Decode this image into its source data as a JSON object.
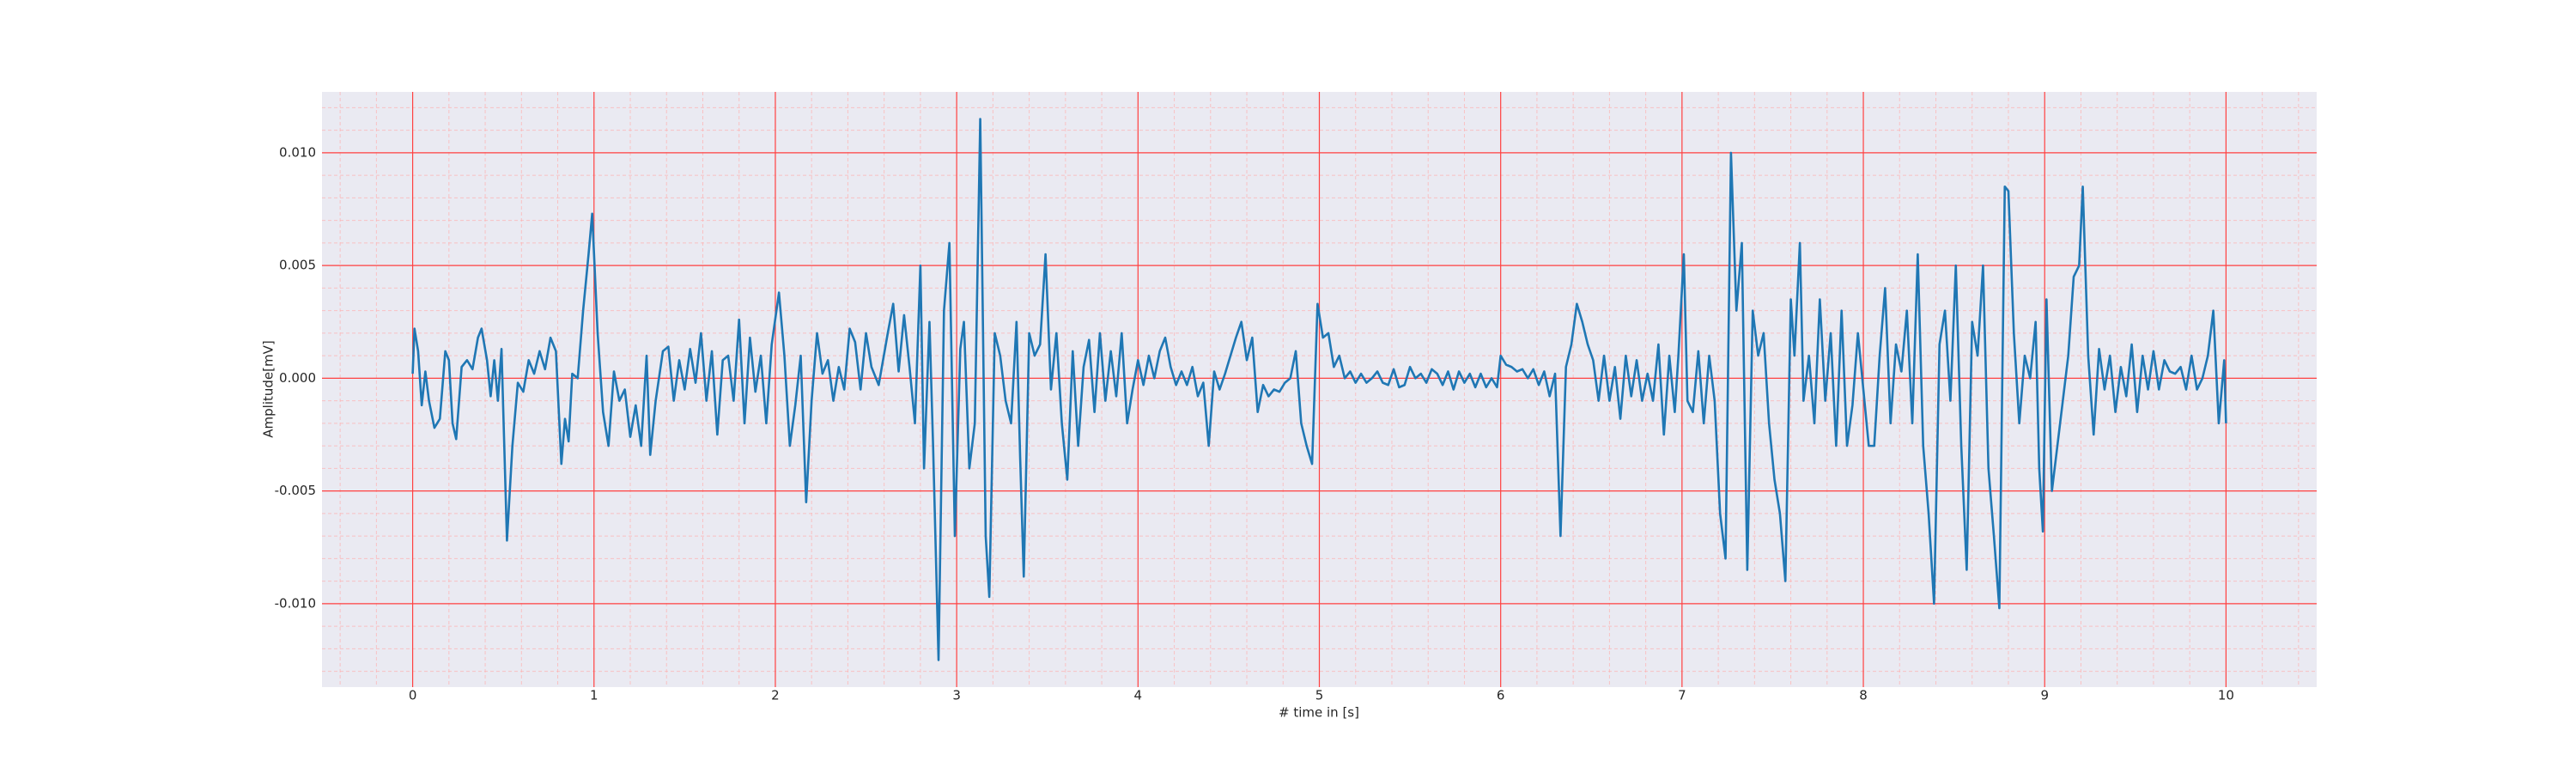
{
  "chart_data": {
    "type": "line",
    "xlabel": "# time in [s]",
    "ylabel": "Amplitude[mV]",
    "color": "#1f77b4",
    "grid": true,
    "minor_grid": true,
    "xlim": [
      -0.5,
      10.5
    ],
    "ylim": [
      -0.0137,
      0.0127
    ],
    "xticks": [
      0,
      1,
      2,
      3,
      4,
      5,
      6,
      7,
      8,
      9,
      10
    ],
    "yticks": [
      {
        "value": -0.01,
        "label": "-0.010"
      },
      {
        "value": -0.005,
        "label": "-0.005"
      },
      {
        "value": 0,
        "label": "0.000"
      },
      {
        "value": 0.005,
        "label": "0.005"
      },
      {
        "value": 0.01,
        "label": "0.010"
      }
    ],
    "xminor": [
      -0.4,
      -0.2,
      0.2,
      0.4,
      0.6,
      0.8,
      1.2,
      1.4,
      1.6,
      1.8,
      2.2,
      2.4,
      2.6,
      2.8,
      3.2,
      3.4,
      3.6,
      3.8,
      4.2,
      4.4,
      4.6,
      4.8,
      5.2,
      5.4,
      5.6,
      5.8,
      6.2,
      6.4,
      6.6,
      6.8,
      7.2,
      7.4,
      7.6,
      7.8,
      8.2,
      8.4,
      8.6,
      8.8,
      9.2,
      9.4,
      9.6,
      9.8,
      10.2,
      10.4
    ],
    "yminor": [
      -0.013,
      -0.012,
      -0.011,
      -0.009,
      -0.008,
      -0.007,
      -0.006,
      -0.004,
      -0.003,
      -0.002,
      -0.001,
      0.001,
      0.002,
      0.003,
      0.004,
      0.006,
      0.007,
      0.008,
      0.009,
      0.011,
      0.012
    ],
    "x": [
      0.0,
      0.01,
      0.03,
      0.05,
      0.07,
      0.09,
      0.12,
      0.15,
      0.18,
      0.2,
      0.22,
      0.24,
      0.27,
      0.3,
      0.33,
      0.36,
      0.38,
      0.41,
      0.43,
      0.45,
      0.47,
      0.49,
      0.52,
      0.55,
      0.58,
      0.61,
      0.64,
      0.67,
      0.7,
      0.73,
      0.76,
      0.79,
      0.82,
      0.84,
      0.86,
      0.88,
      0.91,
      0.94,
      0.97,
      0.99,
      1.02,
      1.05,
      1.08,
      1.11,
      1.14,
      1.17,
      1.2,
      1.23,
      1.26,
      1.29,
      1.31,
      1.34,
      1.38,
      1.41,
      1.44,
      1.47,
      1.5,
      1.53,
      1.56,
      1.59,
      1.62,
      1.65,
      1.68,
      1.71,
      1.74,
      1.77,
      1.8,
      1.83,
      1.86,
      1.89,
      1.92,
      1.95,
      1.98,
      2.02,
      2.05,
      2.08,
      2.11,
      2.14,
      2.17,
      2.2,
      2.23,
      2.26,
      2.29,
      2.32,
      2.35,
      2.38,
      2.41,
      2.44,
      2.47,
      2.5,
      2.53,
      2.57,
      2.62,
      2.65,
      2.68,
      2.71,
      2.74,
      2.77,
      2.8,
      2.82,
      2.85,
      2.87,
      2.9,
      2.93,
      2.96,
      2.99,
      3.02,
      3.04,
      3.07,
      3.1,
      3.13,
      3.16,
      3.18,
      3.21,
      3.24,
      3.27,
      3.3,
      3.33,
      3.35,
      3.37,
      3.4,
      3.43,
      3.46,
      3.49,
      3.52,
      3.55,
      3.58,
      3.61,
      3.64,
      3.67,
      3.7,
      3.73,
      3.76,
      3.79,
      3.82,
      3.85,
      3.88,
      3.91,
      3.94,
      3.97,
      4.0,
      4.03,
      4.06,
      4.09,
      4.12,
      4.15,
      4.18,
      4.21,
      4.24,
      4.27,
      4.3,
      4.33,
      4.36,
      4.39,
      4.42,
      4.45,
      4.48,
      4.51,
      4.54,
      4.57,
      4.6,
      4.63,
      4.66,
      4.69,
      4.72,
      4.75,
      4.78,
      4.81,
      4.84,
      4.87,
      4.9,
      4.93,
      4.96,
      4.99,
      5.02,
      5.05,
      5.08,
      5.11,
      5.14,
      5.17,
      5.2,
      5.23,
      5.26,
      5.29,
      5.32,
      5.35,
      5.38,
      5.41,
      5.44,
      5.47,
      5.5,
      5.53,
      5.56,
      5.59,
      5.62,
      5.65,
      5.68,
      5.71,
      5.74,
      5.77,
      5.8,
      5.83,
      5.86,
      5.89,
      5.92,
      5.95,
      5.98,
      6.0,
      6.03,
      6.06,
      6.09,
      6.12,
      6.15,
      6.18,
      6.21,
      6.24,
      6.27,
      6.3,
      6.33,
      6.36,
      6.39,
      6.42,
      6.45,
      6.48,
      6.51,
      6.54,
      6.57,
      6.6,
      6.63,
      6.66,
      6.69,
      6.72,
      6.75,
      6.78,
      6.81,
      6.84,
      6.87,
      6.9,
      6.93,
      6.96,
      6.98,
      7.01,
      7.03,
      7.06,
      7.09,
      7.12,
      7.15,
      7.18,
      7.21,
      7.24,
      7.27,
      7.3,
      7.33,
      7.36,
      7.39,
      7.42,
      7.45,
      7.48,
      7.51,
      7.54,
      7.57,
      7.6,
      7.62,
      7.65,
      7.67,
      7.7,
      7.73,
      7.76,
      7.79,
      7.82,
      7.85,
      7.88,
      7.91,
      7.94,
      7.97,
      8.0,
      8.03,
      8.06,
      8.09,
      8.12,
      8.15,
      8.18,
      8.21,
      8.24,
      8.27,
      8.3,
      8.33,
      8.36,
      8.39,
      8.42,
      8.45,
      8.48,
      8.51,
      8.54,
      8.57,
      8.6,
      8.63,
      8.66,
      8.69,
      8.72,
      8.75,
      8.78,
      8.8,
      8.83,
      8.86,
      8.89,
      8.92,
      8.95,
      8.97,
      8.99,
      9.01,
      9.04,
      9.07,
      9.1,
      9.13,
      9.16,
      9.19,
      9.21,
      9.24,
      9.27,
      9.3,
      9.33,
      9.36,
      9.39,
      9.42,
      9.45,
      9.48,
      9.51,
      9.54,
      9.57,
      9.6,
      9.63,
      9.66,
      9.69,
      9.72,
      9.75,
      9.78,
      9.81,
      9.84,
      9.87,
      9.9,
      9.93,
      9.96,
      9.99,
      10.0
    ],
    "values": [
      0.0002,
      0.0022,
      0.0012,
      -0.0012,
      0.0003,
      -0.001,
      -0.0022,
      -0.0018,
      0.0012,
      0.0008,
      -0.002,
      -0.0027,
      0.0005,
      0.0008,
      0.0004,
      0.0018,
      0.0022,
      0.0008,
      -0.0008,
      0.0008,
      -0.001,
      0.0013,
      -0.0072,
      -0.003,
      -0.0002,
      -0.0006,
      0.0008,
      0.0002,
      0.0012,
      0.0004,
      0.0018,
      0.0012,
      -0.0038,
      -0.0018,
      -0.0028,
      0.0002,
      0.0,
      0.003,
      0.0055,
      0.0073,
      0.002,
      -0.0015,
      -0.003,
      0.0003,
      -0.001,
      -0.0005,
      -0.0026,
      -0.0012,
      -0.003,
      0.001,
      -0.0034,
      -0.001,
      0.0012,
      0.0014,
      -0.001,
      0.0008,
      -0.0005,
      0.0013,
      -0.0002,
      0.002,
      -0.001,
      0.0012,
      -0.0025,
      0.0008,
      0.001,
      -0.001,
      0.0026,
      -0.002,
      0.0018,
      -0.0006,
      0.001,
      -0.002,
      0.0015,
      0.0038,
      0.001,
      -0.003,
      -0.0012,
      0.001,
      -0.0055,
      -0.001,
      0.002,
      0.0002,
      0.0008,
      -0.001,
      0.0005,
      -0.0005,
      0.0022,
      0.0016,
      -0.0005,
      0.002,
      0.0005,
      -0.0003,
      0.002,
      0.0033,
      0.0003,
      0.0028,
      0.0005,
      -0.002,
      0.005,
      -0.004,
      0.0025,
      -0.003,
      -0.0125,
      0.003,
      0.006,
      -0.007,
      0.0013,
      0.0025,
      -0.004,
      -0.002,
      0.0115,
      -0.007,
      -0.0097,
      0.002,
      0.001,
      -0.001,
      -0.002,
      0.0025,
      -0.0035,
      -0.0088,
      0.002,
      0.001,
      0.0015,
      0.0055,
      -0.0005,
      0.002,
      -0.002,
      -0.0045,
      0.0012,
      -0.003,
      0.0005,
      0.0017,
      -0.0015,
      0.002,
      -0.001,
      0.0012,
      -0.0008,
      0.002,
      -0.002,
      -0.0005,
      0.0008,
      -0.0003,
      0.001,
      0.0,
      0.0012,
      0.0018,
      0.0005,
      -0.0003,
      0.0003,
      -0.0003,
      0.0005,
      -0.0008,
      -0.0002,
      -0.003,
      0.0003,
      -0.0005,
      0.0002,
      0.001,
      0.0018,
      0.0025,
      0.0008,
      0.0018,
      -0.0015,
      -0.0003,
      -0.0008,
      -0.0005,
      -0.0006,
      -0.0002,
      0.0,
      0.0012,
      -0.002,
      -0.003,
      -0.0038,
      0.0033,
      0.0018,
      0.002,
      0.0005,
      0.001,
      0.0,
      0.0003,
      -0.0002,
      0.0002,
      -0.0002,
      0.0,
      0.0003,
      -0.0002,
      -0.0003,
      0.0004,
      -0.0004,
      -0.0003,
      0.0005,
      0.0,
      0.0002,
      -0.0002,
      0.0004,
      0.0002,
      -0.0003,
      0.0003,
      -0.0005,
      0.0003,
      -0.0002,
      0.0002,
      -0.0004,
      0.0002,
      -0.0004,
      0.0,
      -0.0004,
      0.001,
      0.0006,
      0.0005,
      0.0003,
      0.0004,
      0.0,
      0.0004,
      -0.0003,
      0.0003,
      -0.0008,
      0.0002,
      -0.007,
      0.0005,
      0.0015,
      0.0033,
      0.0025,
      0.0015,
      0.0008,
      -0.001,
      0.001,
      -0.001,
      0.0005,
      -0.0018,
      0.001,
      -0.0008,
      0.0008,
      -0.001,
      0.0002,
      -0.001,
      0.0015,
      -0.0025,
      0.001,
      -0.0015,
      0.001,
      0.0055,
      -0.001,
      -0.0015,
      0.0012,
      -0.002,
      0.001,
      -0.001,
      -0.006,
      -0.008,
      0.01,
      0.003,
      0.006,
      -0.0085,
      0.003,
      0.001,
      0.002,
      -0.002,
      -0.0045,
      -0.006,
      -0.009,
      0.0035,
      0.001,
      0.006,
      -0.001,
      0.001,
      -0.002,
      0.0035,
      -0.001,
      0.002,
      -0.003,
      0.003,
      -0.003,
      -0.0012,
      0.002,
      -0.0005,
      -0.003,
      -0.003,
      0.001,
      0.004,
      -0.002,
      0.0015,
      0.0003,
      0.003,
      -0.002,
      0.0055,
      -0.003,
      -0.006,
      -0.01,
      0.0015,
      0.003,
      -0.001,
      0.005,
      -0.003,
      -0.0085,
      0.0025,
      0.001,
      0.005,
      -0.004,
      -0.007,
      -0.0102,
      0.0085,
      0.0083,
      0.002,
      -0.002,
      0.001,
      0.0,
      0.0025,
      -0.004,
      -0.0068,
      0.0035,
      -0.005,
      -0.003,
      -0.001,
      0.001,
      0.0045,
      0.005,
      0.0085,
      0.001,
      -0.0025,
      0.0013,
      -0.0005,
      0.001,
      -0.0015,
      0.0005,
      -0.0008,
      0.0015,
      -0.0015,
      0.001,
      -0.0005,
      0.0012,
      -0.0005,
      0.0008,
      0.0003,
      0.0002,
      0.0005,
      -0.0005,
      0.001,
      -0.0005,
      0.0,
      0.001,
      0.003,
      -0.002,
      0.0008,
      -0.002
    ]
  }
}
